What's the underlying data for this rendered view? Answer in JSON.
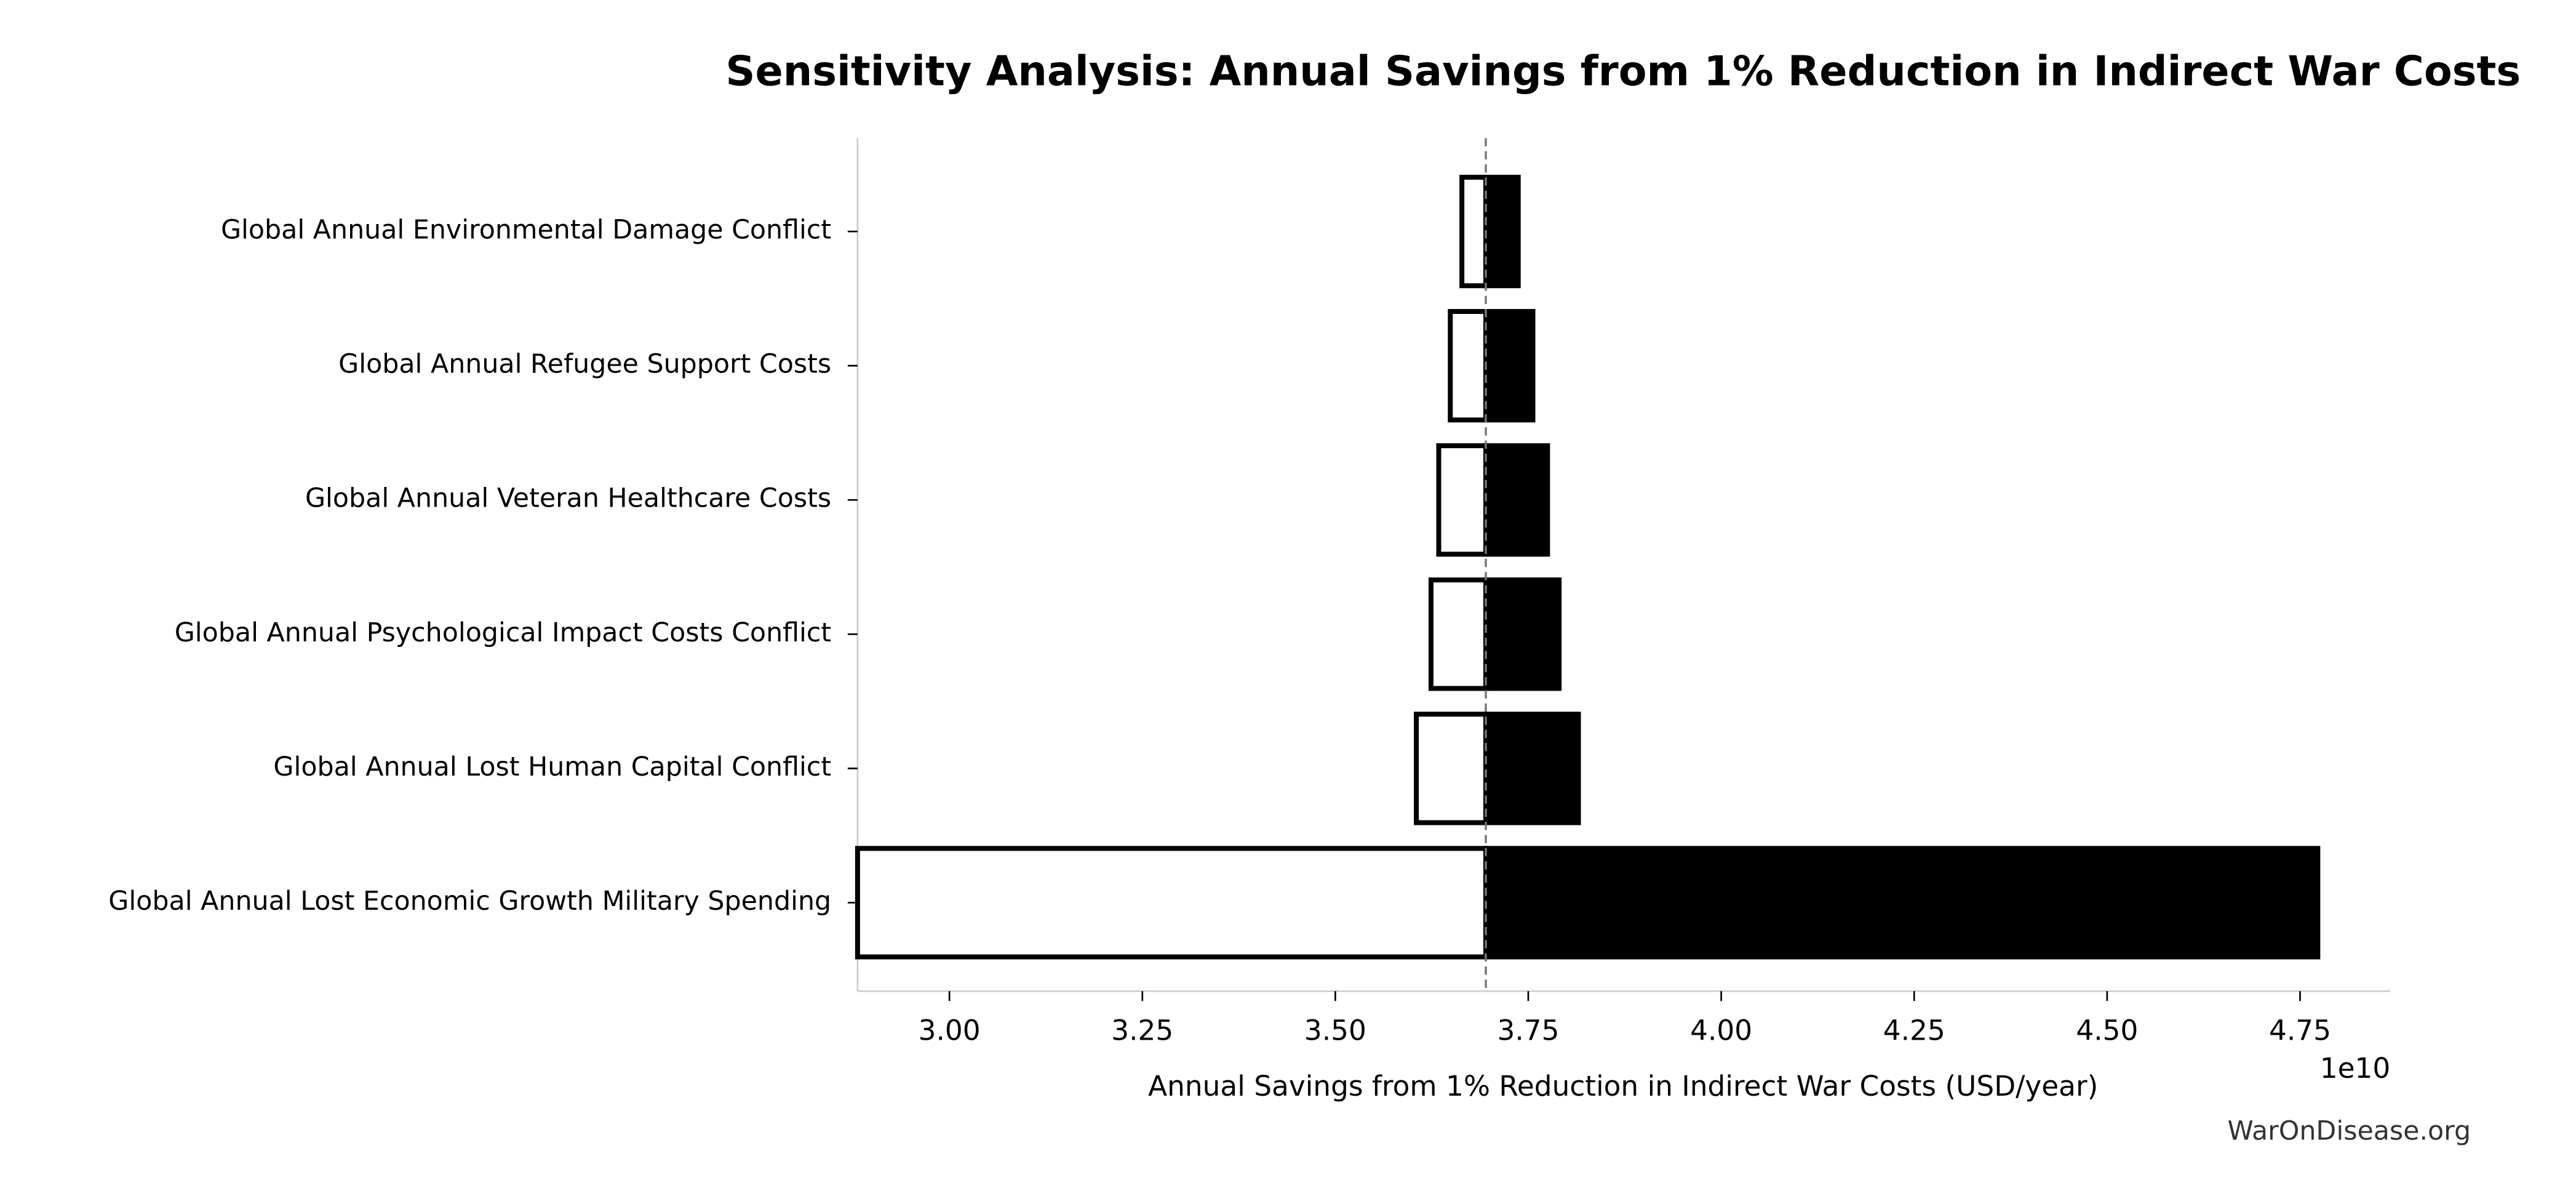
{
  "chart_data": {
    "type": "tornado",
    "title": "Sensitivity Analysis: Annual Savings from 1% Reduction in Indirect War Costs",
    "xlabel": "Annual Savings from 1% Reduction in Indirect War Costs (USD/year)",
    "x_offset_label": "1e10",
    "footer": "WarOnDisease.org",
    "categories": [
      "Global Annual Environmental Damage Conflict",
      "Global Annual Refugee Support Costs",
      "Global Annual Veteran Healthcare Costs",
      "Global Annual Psychological Impact Costs Conflict",
      "Global Annual Lost Human Capital Conflict",
      "Global Annual Lost Economic Growth Military Spending"
    ],
    "baseline": 3.695,
    "series": [
      {
        "color": "#ffffff",
        "values": [
          3.664,
          3.649,
          3.634,
          3.624,
          3.605,
          2.881
        ]
      },
      {
        "color": "#000000",
        "values": [
          3.737,
          3.756,
          3.775,
          3.79,
          3.815,
          4.773
        ]
      }
    ],
    "xlim": [
      2.881,
      4.867
    ],
    "xticks": [
      {
        "value": 3,
        "label": "3.00"
      },
      {
        "value": 3.25,
        "label": "3.25"
      },
      {
        "value": 3.5,
        "label": "3.50"
      },
      {
        "value": 3.75,
        "label": "3.75"
      },
      {
        "value": 4,
        "label": "4.00"
      },
      {
        "value": 4.25,
        "label": "4.25"
      },
      {
        "value": 4.5,
        "label": "4.50"
      },
      {
        "value": 4.75,
        "label": "4.75"
      }
    ]
  }
}
